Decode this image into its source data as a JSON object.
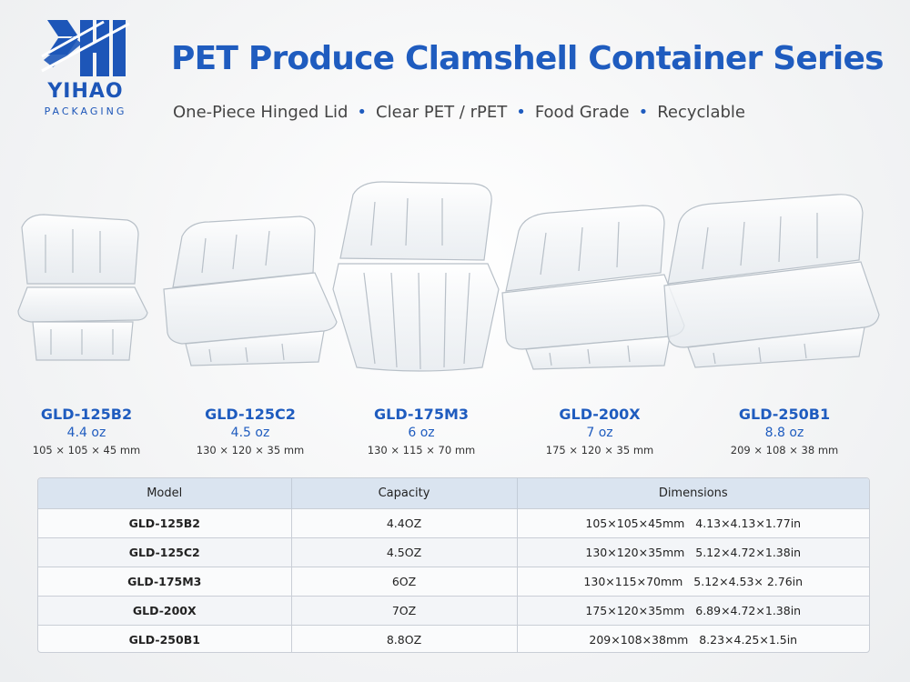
{
  "brand": {
    "name": "YIHAO",
    "sub": "PACKAGING",
    "color": "#1d56b8"
  },
  "header": {
    "title": "PET Produce Clamshell Container Series",
    "features": [
      "One-Piece Hinged Lid",
      "Clear PET / rPET",
      "Food Grade",
      "Recyclable"
    ],
    "separator": "•"
  },
  "products": [
    {
      "model": "GLD-125B2",
      "capacity": "4.4 oz",
      "dims": "105 × 105 × 45 mm"
    },
    {
      "model": "GLD-125C2",
      "capacity": "4.5 oz",
      "dims": "130 × 120 × 35 mm"
    },
    {
      "model": "GLD-175M3",
      "capacity": "6 oz",
      "dims": "130 × 115 × 70 mm"
    },
    {
      "model": "GLD-200X",
      "capacity": "7 oz",
      "dims": "175 × 120 × 35 mm"
    },
    {
      "model": "GLD-250B1",
      "capacity": "8.8 oz",
      "dims": "209 × 108 × 38 mm"
    }
  ],
  "table": {
    "headers": [
      "Model",
      "Capacity",
      "Dimensions"
    ],
    "rows": [
      [
        "GLD-125B2",
        "4.4OZ",
        "105×105×45mm   4.13×4.13×1.77in"
      ],
      [
        "GLD-125C2",
        "4.5OZ",
        "130×120×35mm   5.12×4.72×1.38in"
      ],
      [
        "GLD-175M3",
        "6OZ",
        "130×115×70mm   5.12×4.53× 2.76in"
      ],
      [
        "GLD-200X",
        "7OZ",
        "175×120×35mm   6.89×4.72×1.38in"
      ],
      [
        "GLD-250B1",
        "8.8OZ",
        "209×108×38mm   8.23×4.25×1.5in"
      ]
    ]
  },
  "colors": {
    "accent": "#1f5cbf",
    "table_header": "#dae4f0"
  }
}
